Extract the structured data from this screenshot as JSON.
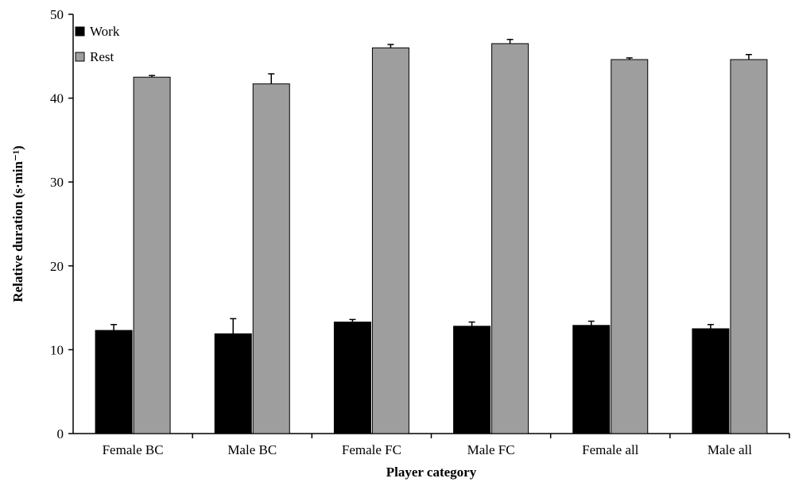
{
  "chart_data": {
    "type": "bar",
    "title": "",
    "xlabel": "Player category",
    "ylabel": "Relative duration (s·min⁻¹)",
    "ylim": [
      0,
      50
    ],
    "yticks": [
      0,
      10,
      20,
      30,
      40,
      50
    ],
    "categories": [
      "Female BC",
      "Male BC",
      "Female FC",
      "Male FC",
      "Female all",
      "Male all"
    ],
    "series": [
      {
        "name": "Work",
        "color": "#000000",
        "values": [
          12.3,
          11.9,
          13.3,
          12.8,
          12.9,
          12.5
        ],
        "errors": [
          0.7,
          1.8,
          0.3,
          0.5,
          0.5,
          0.5
        ]
      },
      {
        "name": "Rest",
        "color": "#9e9e9e",
        "values": [
          42.5,
          41.7,
          46.0,
          46.5,
          44.6,
          44.6
        ],
        "errors": [
          0.2,
          1.2,
          0.4,
          0.5,
          0.2,
          0.6
        ]
      }
    ],
    "legend": "top-left",
    "grid": false
  }
}
